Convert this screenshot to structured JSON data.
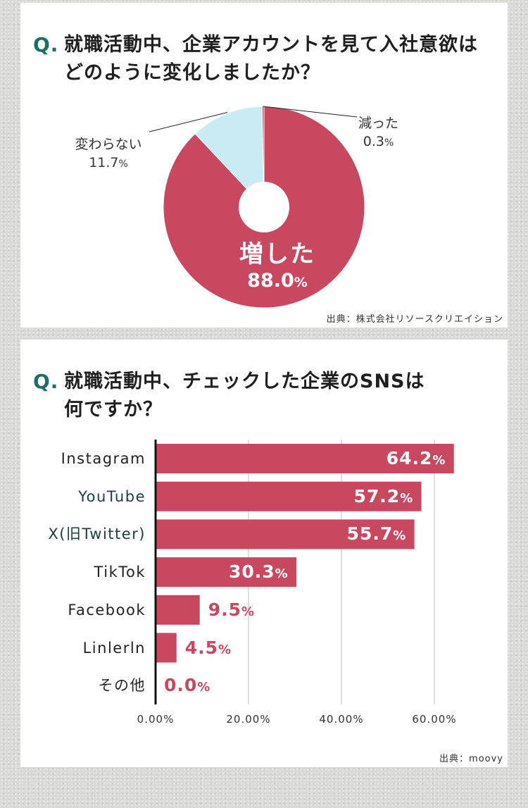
{
  "colors": {
    "accent": "#c84860",
    "light": "#c9ebf3",
    "q_mark": "#1e6e66"
  },
  "q1": {
    "mark": "Q.",
    "line1": "就職活動中、企業アカウントを見て入社意欲は",
    "line2": "どのように変化しましたか？",
    "source": "出典：株式会社リソースクリエイション"
  },
  "q2": {
    "mark": "Q.",
    "line1": "就職活動中、チェックした企業のSNSは",
    "line2": "何ですか？",
    "source": "出典：moovy"
  },
  "chart_data": [
    {
      "type": "pie",
      "categories": [
        "増した",
        "変わらない",
        "減った"
      ],
      "values": [
        88.0,
        11.7,
        0.3
      ],
      "labels": {
        "inc_name": "増した",
        "inc_value": "88.0",
        "inc_unit": "%",
        "same_name": "変わらない",
        "same_value": "11.7",
        "same_unit": "%",
        "dec_name": "減った",
        "dec_value": "0.3",
        "dec_unit": "%"
      }
    },
    {
      "type": "bar",
      "orientation": "horizontal",
      "categories": [
        "Instagram",
        "YouTube",
        "X(旧Twitter)",
        "TikTok",
        "Facebook",
        "Linlerln",
        "その他"
      ],
      "values": [
        64.2,
        57.2,
        55.7,
        30.3,
        9.5,
        4.5,
        0.0
      ],
      "value_labels": [
        "64.2",
        "57.2",
        "55.7",
        "30.3",
        "9.5",
        "4.5",
        "0.0"
      ],
      "unit": "%",
      "xlim": [
        0,
        70
      ],
      "ticks": [
        0,
        20,
        40,
        60
      ],
      "tick_labels": [
        "0.00%",
        "20.00%",
        "40.00%",
        "60.00%"
      ],
      "grid": true
    }
  ]
}
